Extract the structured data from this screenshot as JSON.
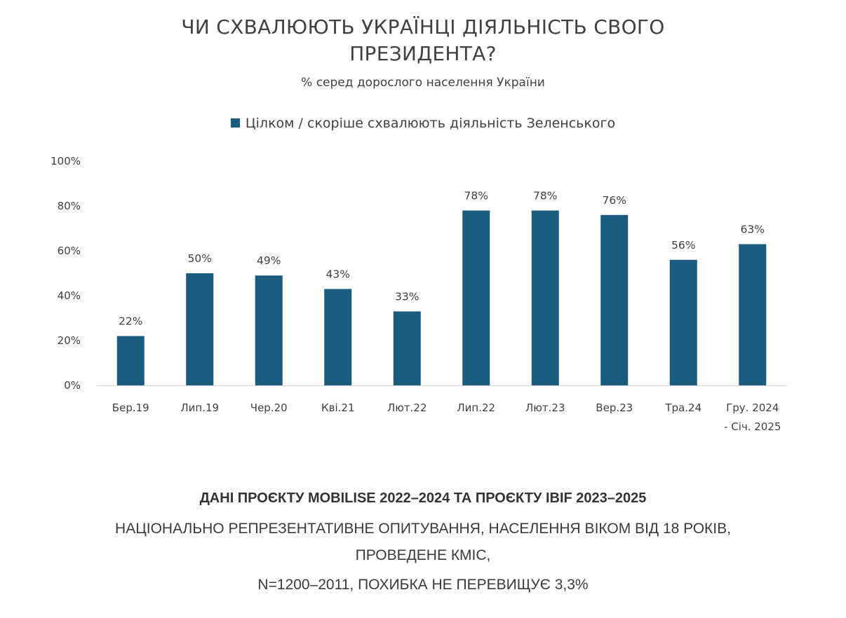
{
  "chart_data": {
    "type": "bar",
    "title_line1": "ЧИ СХВАЛЮЮТЬ УКРАЇНЦІ ДІЯЛЬНІСТЬ СВОГО",
    "title_line2": "ПРЕЗИДЕНТА?",
    "subtitle": "% серед дорослого населення України",
    "categories": [
      "Бер.19",
      "Лип.19",
      "Чер.20",
      "Кві.21",
      "Лют.22",
      "Лип.22",
      "Лют.23",
      "Вер.23",
      "Тра.24",
      "Гру. 2024\n- Січ. 2025"
    ],
    "series": [
      {
        "name": "Цілком / скоріше схвалюють діяльність Зеленського",
        "values": [
          22,
          50,
          49,
          43,
          33,
          78,
          78,
          76,
          56,
          63
        ],
        "color": "#1a5c7e"
      }
    ],
    "ylim": [
      0,
      100
    ],
    "yticks": [
      0,
      20,
      40,
      60,
      80,
      100
    ],
    "y_tick_format": "percent",
    "data_labels": [
      "22%",
      "50%",
      "49%",
      "43%",
      "33%",
      "78%",
      "78%",
      "76%",
      "56%",
      "63%"
    ],
    "grid": false,
    "legend_position": "top-center"
  },
  "footer": {
    "source_bold": "ДАНІ ПРОЄКТУ MOBILISE 2022–2024 ТА ПРОЄКТУ IBIF 2023–2025",
    "line1": "НАЦІОНАЛЬНО РЕПРЕЗЕНТАТИВНЕ ОПИТУВАННЯ, НАСЕЛЕННЯ ВІКОМ ВІД 18 РОКІВ,",
    "line2": "ПРОВЕДЕНЕ КМІС,",
    "line3": "N=1200–2011, ПОХИБКА НЕ ПЕРЕВИЩУЄ 3,3%"
  }
}
